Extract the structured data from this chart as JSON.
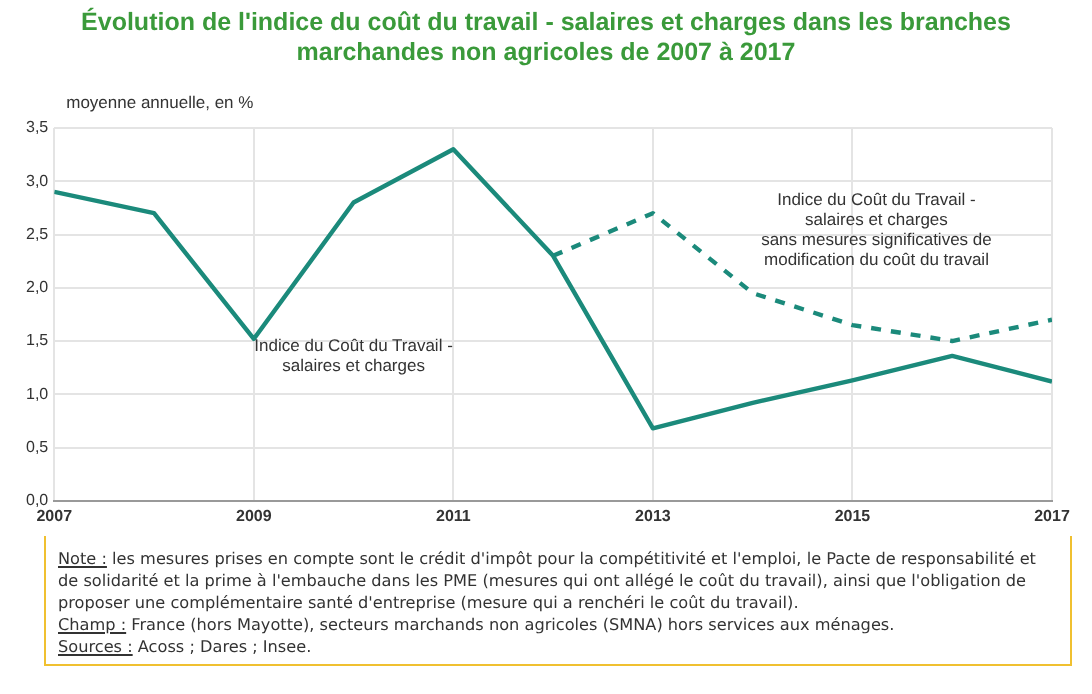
{
  "chart_data": {
    "type": "line",
    "title": "Évolution de l'indice du coût du travail - salaires et charges dans les branches marchandes non agricoles de 2007 à 2017",
    "ylabel": "moyenne annuelle, en %",
    "x": [
      2007,
      2008,
      2009,
      2010,
      2011,
      2012,
      2013,
      2014,
      2015,
      2016,
      2017
    ],
    "series": [
      {
        "name": "Indice du Coût du Travail - salaires et charges",
        "color": "#1b8a7b",
        "line_style": "solid",
        "values": [
          2.9,
          2.7,
          1.52,
          2.8,
          3.3,
          2.3,
          0.68,
          0.92,
          1.13,
          1.36,
          1.12
        ]
      },
      {
        "name": "Indice du Coût du Travail - salaires et charges sans mesures significatives de modification du coût du travail",
        "color": "#1b8a7b",
        "line_style": "dashed",
        "values": [
          null,
          null,
          null,
          null,
          null,
          2.3,
          2.7,
          1.95,
          1.65,
          1.5,
          1.7
        ]
      }
    ],
    "xlim": [
      2007,
      2017
    ],
    "xticks": [
      2007,
      2009,
      2011,
      2013,
      2015,
      2017
    ],
    "ylim": [
      0,
      3.5
    ],
    "yticks": [
      {
        "value": 0,
        "label": "0,0"
      },
      {
        "value": 0.5,
        "label": "0,5"
      },
      {
        "value": 1,
        "label": "1,0"
      },
      {
        "value": 1.5,
        "label": "1,5"
      },
      {
        "value": 2,
        "label": "2,0"
      },
      {
        "value": 2.5,
        "label": "2,5"
      },
      {
        "value": 3,
        "label": "3,0"
      },
      {
        "value": 3.5,
        "label": "3,5"
      }
    ],
    "grid": true,
    "legend": false,
    "marker": "none",
    "annotations": [
      "Note : les mesures prises en compte sont le crédit d'impôt pour la compétitivité et l'emploi, le Pacte de responsabilité et de solidarité et la prime à l'embauche dans les PME (mesures qui ont allégé le coût du travail), ainsi que l'obligation de proposer une complémentaire santé d'entreprise (mesure qui a renchéri le coût du travail).",
      "Champ : France (hors Mayotte), secteurs marchands non agricoles (SMNA) hors services aux ménages.",
      "Sources : Acoss ; Dares ; Insee."
    ]
  }
}
